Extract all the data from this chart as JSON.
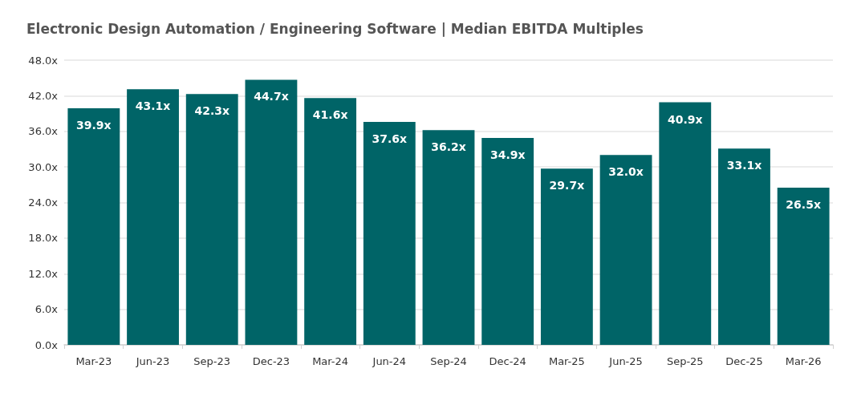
{
  "chart_data": {
    "type": "bar",
    "title": "Electronic Design Automation / Engineering Software | Median EBITDA Multiples",
    "categories": [
      "Mar-23",
      "Jun-23",
      "Sep-23",
      "Dec-23",
      "Mar-24",
      "Jun-24",
      "Sep-24",
      "Dec-24",
      "Mar-25",
      "Jun-25",
      "Sep-25",
      "Dec-25",
      "Mar-26"
    ],
    "values": [
      39.9,
      43.1,
      42.3,
      44.7,
      41.6,
      37.6,
      36.2,
      34.9,
      29.7,
      32.0,
      40.9,
      33.1,
      26.5
    ],
    "value_labels": [
      "39.9x",
      "43.1x",
      "42.3x",
      "44.7x",
      "41.6x",
      "37.6x",
      "36.2x",
      "34.9x",
      "29.7x",
      "32.0x",
      "40.9x",
      "33.1x",
      "26.5x"
    ],
    "color": "#006467",
    "ylim": [
      0,
      48
    ],
    "yticks": [
      {
        "value": 0,
        "label": "0.0x"
      },
      {
        "value": 6,
        "label": "6.0x"
      },
      {
        "value": 12,
        "label": "12.0x"
      },
      {
        "value": 18,
        "label": "18.0x"
      },
      {
        "value": 24,
        "label": "24.0x"
      },
      {
        "value": 30,
        "label": "30.0x"
      },
      {
        "value": 36,
        "label": "36.0x"
      },
      {
        "value": 42,
        "label": "42.0x"
      },
      {
        "value": 48,
        "label": "48.0x"
      }
    ],
    "grid": "y"
  }
}
